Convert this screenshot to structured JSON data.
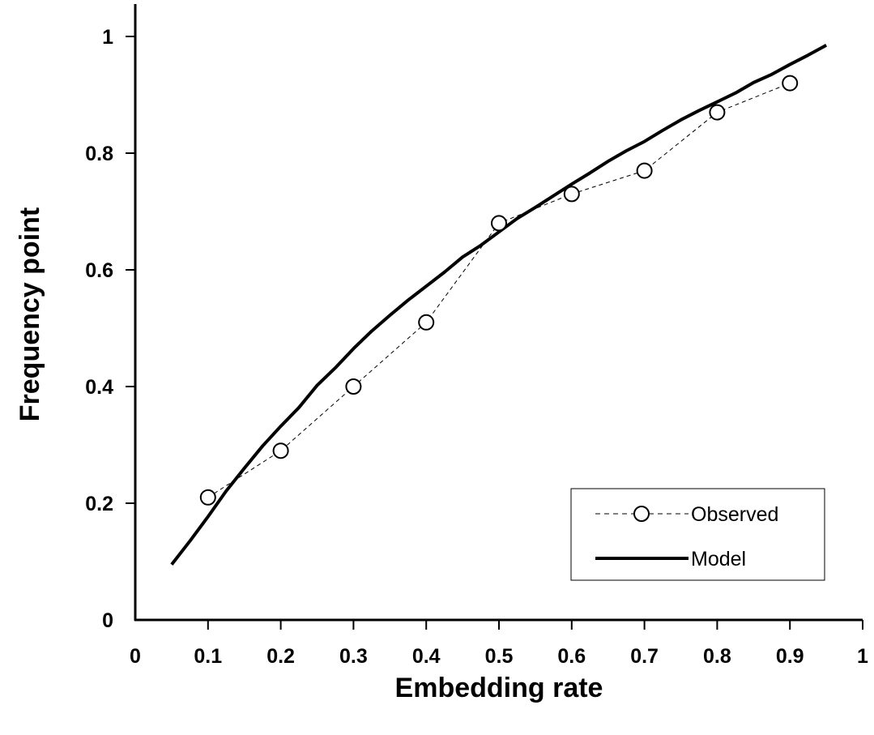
{
  "chart_data": {
    "type": "line",
    "title": "",
    "xlabel": "Embedding rate",
    "ylabel": "Frequency point",
    "xlim": [
      0,
      1
    ],
    "ylim": [
      0,
      1
    ],
    "x_ticks": [
      "0",
      "0.1",
      "0.2",
      "0.3",
      "0.4",
      "0.5",
      "0.6",
      "0.7",
      "0.8",
      "0.9",
      "1"
    ],
    "y_ticks": [
      "0",
      "0.2",
      "0.4",
      "0.6",
      "0.8",
      "1"
    ],
    "grid": false,
    "legend_position": "bottom-right",
    "series": [
      {
        "name": "Observed",
        "style": "dashed line with open circle markers",
        "color": "#000000",
        "x": [
          0.1,
          0.2,
          0.3,
          0.4,
          0.5,
          0.6,
          0.7,
          0.8,
          0.9
        ],
        "y": [
          0.21,
          0.29,
          0.4,
          0.51,
          0.68,
          0.73,
          0.77,
          0.87,
          0.92
        ]
      },
      {
        "name": "Model",
        "style": "solid thick line",
        "color": "#000000",
        "x": [
          0.05,
          0.075,
          0.1,
          0.125,
          0.15,
          0.175,
          0.2,
          0.225,
          0.25,
          0.275,
          0.3,
          0.325,
          0.35,
          0.375,
          0.4,
          0.425,
          0.45,
          0.475,
          0.5,
          0.525,
          0.55,
          0.575,
          0.6,
          0.625,
          0.65,
          0.675,
          0.7,
          0.725,
          0.75,
          0.775,
          0.8,
          0.825,
          0.85,
          0.875,
          0.9,
          0.925,
          0.95
        ],
        "y": [
          0.095,
          0.135,
          0.177,
          0.221,
          0.26,
          0.298,
          0.332,
          0.364,
          0.402,
          0.432,
          0.465,
          0.495,
          0.522,
          0.548,
          0.572,
          0.596,
          0.622,
          0.642,
          0.665,
          0.688,
          0.707,
          0.727,
          0.747,
          0.766,
          0.786,
          0.804,
          0.82,
          0.839,
          0.857,
          0.873,
          0.888,
          0.903,
          0.921,
          0.935,
          0.952,
          0.968,
          0.985
        ]
      }
    ]
  }
}
